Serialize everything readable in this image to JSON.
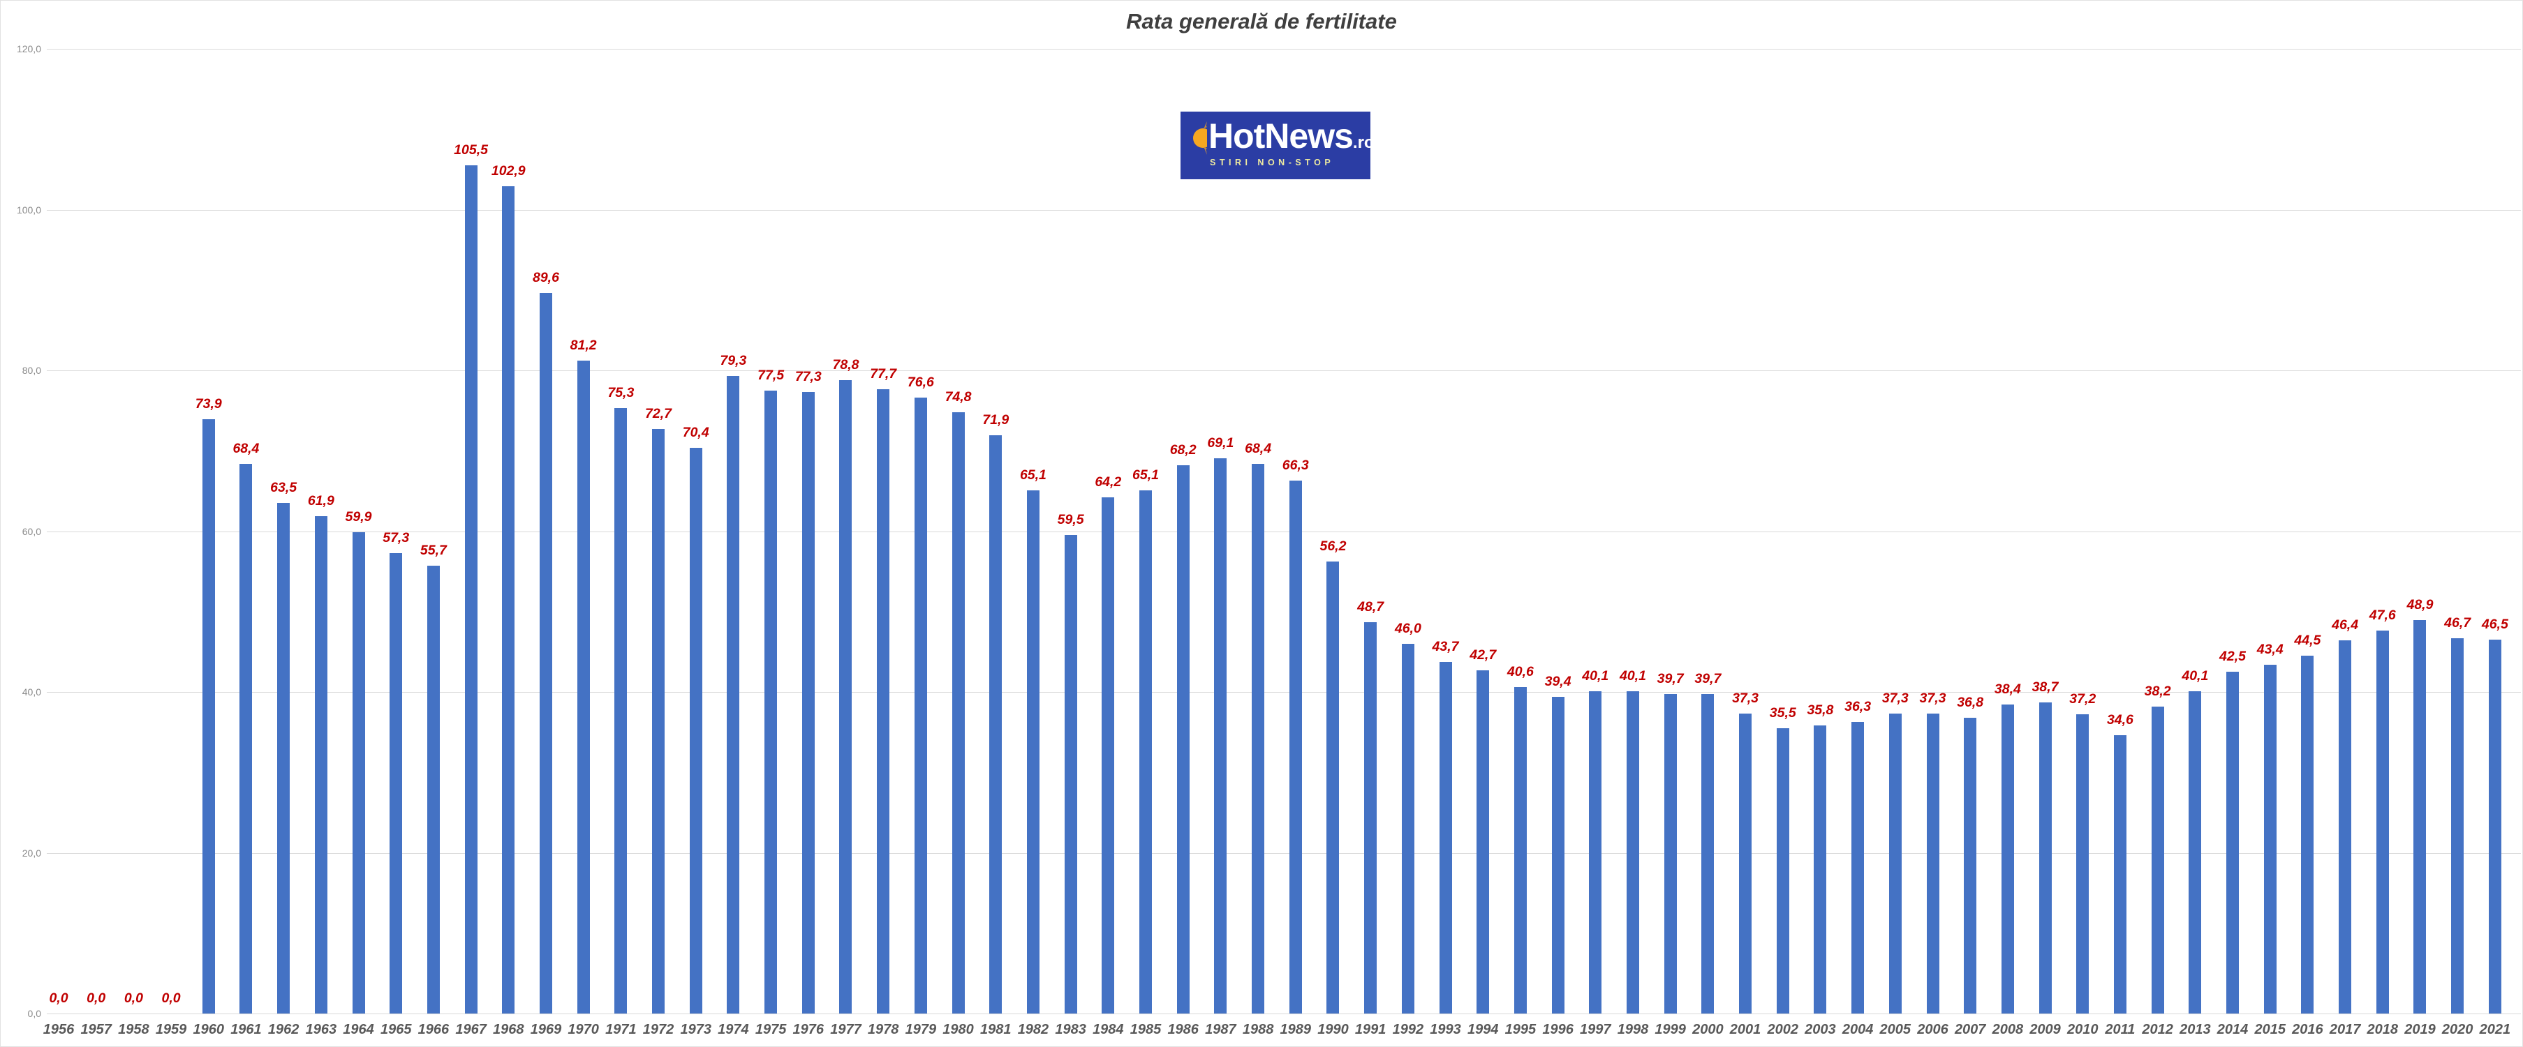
{
  "title": "Rata generală de fertilitate",
  "logo": {
    "brand": "HotNews",
    "tld": ".ro",
    "tagline": "STIRI NON-STOP",
    "background_color": "#2b3da4",
    "sun_color": "#f6a721",
    "tagline_color": "#ede9a0"
  },
  "chart_data": {
    "type": "bar",
    "title": "Rata generală de fertilitate",
    "xlabel": "",
    "ylabel": "",
    "ylim": [
      0,
      120
    ],
    "grid": true,
    "legend": false,
    "bar_color": "#4472c4",
    "value_label_color": "#c00000",
    "axis_label_color": "#8a8a8a",
    "category_label_color": "#595959",
    "gridline_color": "#d9d9d9",
    "y_ticks": [
      {
        "value": 120,
        "label": "120,0"
      },
      {
        "value": 100,
        "label": "100,0"
      },
      {
        "value": 80,
        "label": "80,0"
      },
      {
        "value": 60,
        "label": "60,0"
      },
      {
        "value": 40,
        "label": "40,0"
      },
      {
        "value": 20,
        "label": "20,0"
      },
      {
        "value": 0,
        "label": "0,0"
      }
    ],
    "categories": [
      "1956",
      "1957",
      "1958",
      "1959",
      "1960",
      "1961",
      "1962",
      "1963",
      "1964",
      "1965",
      "1966",
      "1967",
      "1968",
      "1969",
      "1970",
      "1971",
      "1972",
      "1973",
      "1974",
      "1975",
      "1976",
      "1977",
      "1978",
      "1979",
      "1980",
      "1981",
      "1982",
      "1983",
      "1984",
      "1985",
      "1986",
      "1987",
      "1988",
      "1989",
      "1990",
      "1991",
      "1992",
      "1993",
      "1994",
      "1995",
      "1996",
      "1997",
      "1998",
      "1999",
      "2000",
      "2001",
      "2002",
      "2003",
      "2004",
      "2005",
      "2006",
      "2007",
      "2008",
      "2009",
      "2010",
      "2011",
      "2012",
      "2013",
      "2014",
      "2015",
      "2016",
      "2017",
      "2018",
      "2019",
      "2020",
      "2021"
    ],
    "values": [
      0.0,
      0.0,
      0.0,
      0.0,
      73.9,
      68.4,
      63.5,
      61.9,
      59.9,
      57.3,
      55.7,
      105.5,
      102.9,
      89.6,
      81.2,
      75.3,
      72.7,
      70.4,
      79.3,
      77.5,
      77.3,
      78.8,
      77.7,
      76.6,
      74.8,
      71.9,
      65.1,
      59.5,
      64.2,
      65.1,
      68.2,
      69.1,
      68.4,
      66.3,
      56.2,
      48.7,
      46.0,
      43.7,
      42.7,
      40.6,
      39.4,
      40.1,
      40.1,
      39.7,
      39.7,
      37.3,
      35.5,
      35.8,
      36.3,
      37.3,
      37.3,
      36.8,
      38.4,
      38.7,
      37.2,
      34.6,
      38.2,
      40.1,
      42.5,
      43.4,
      44.5,
      46.4,
      47.6,
      48.9,
      46.7,
      46.5
    ],
    "value_labels": [
      "0,0",
      "0,0",
      "0,0",
      "0,0",
      "73,9",
      "68,4",
      "63,5",
      "61,9",
      "59,9",
      "57,3",
      "55,7",
      "105,5",
      "102,9",
      "89,6",
      "81,2",
      "75,3",
      "72,7",
      "70,4",
      "79,3",
      "77,5",
      "77,3",
      "78,8",
      "77,7",
      "76,6",
      "74,8",
      "71,9",
      "65,1",
      "59,5",
      "64,2",
      "65,1",
      "68,2",
      "69,1",
      "68,4",
      "66,3",
      "56,2",
      "48,7",
      "46,0",
      "43,7",
      "42,7",
      "40,6",
      "39,4",
      "40,1",
      "40,1",
      "39,7",
      "39,7",
      "37,3",
      "35,5",
      "35,8",
      "36,3",
      "37,3",
      "37,3",
      "36,8",
      "38,4",
      "38,7",
      "37,2",
      "34,6",
      "38,2",
      "40,1",
      "42,5",
      "43,4",
      "44,5",
      "46,4",
      "47,6",
      "48,9",
      "46,7",
      "46,5"
    ]
  }
}
